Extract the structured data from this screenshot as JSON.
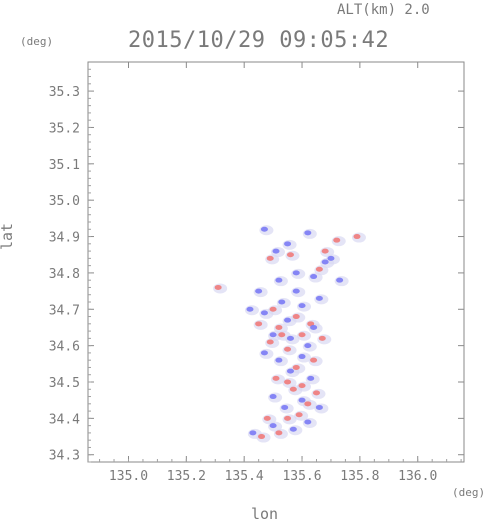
{
  "header": {
    "alt_label": "ALT(km) 2.0",
    "timestamp": "2015/10/29 09:05:42"
  },
  "units": {
    "y_unit": "(deg)",
    "x_unit": "(deg)"
  },
  "chart_data": {
    "type": "heatmap",
    "title": "2015/10/29 09:05:42",
    "subtitle": "ALT(km) 2.0",
    "xlabel": "lon",
    "ylabel": "lat",
    "xlim": [
      134.86,
      136.16
    ],
    "ylim": [
      34.28,
      35.38
    ],
    "xticks": [
      135.0,
      135.2,
      135.4,
      135.6,
      135.8,
      136.0
    ],
    "yticks": [
      34.3,
      34.4,
      34.5,
      34.6,
      34.7,
      34.8,
      34.9,
      35.0,
      35.1,
      35.2,
      35.3
    ],
    "xtick_labels": [
      "135.0",
      "135.2",
      "135.4",
      "135.6",
      "135.8",
      "136.0"
    ],
    "ytick_labels": [
      "34.3",
      "34.4",
      "34.5",
      "34.6",
      "34.7",
      "34.8",
      "34.9",
      "35.0",
      "35.1",
      "35.2",
      "35.3"
    ],
    "grid": false,
    "colors": {
      "positive": "#f07a7a",
      "negative": "#7a7af5",
      "neutral": "#d8d8f2"
    },
    "series": [
      {
        "kind": "positive",
        "points": [
          [
            135.46,
            34.35
          ],
          [
            135.52,
            34.36
          ],
          [
            135.48,
            34.4
          ],
          [
            135.55,
            34.4
          ],
          [
            135.59,
            34.41
          ],
          [
            135.62,
            34.44
          ],
          [
            135.65,
            34.47
          ],
          [
            135.6,
            34.49
          ],
          [
            135.55,
            34.5
          ],
          [
            135.51,
            34.51
          ],
          [
            135.58,
            34.54
          ],
          [
            135.64,
            34.56
          ],
          [
            135.55,
            34.59
          ],
          [
            135.49,
            34.61
          ],
          [
            135.6,
            34.63
          ],
          [
            135.52,
            34.65
          ],
          [
            135.45,
            34.66
          ],
          [
            135.58,
            34.68
          ],
          [
            135.5,
            34.7
          ],
          [
            135.63,
            34.66
          ],
          [
            135.67,
            34.62
          ],
          [
            135.49,
            34.84
          ],
          [
            135.56,
            34.85
          ],
          [
            135.68,
            34.86
          ],
          [
            135.72,
            34.89
          ],
          [
            135.79,
            34.9
          ],
          [
            135.31,
            34.76
          ],
          [
            135.66,
            34.81
          ],
          [
            135.53,
            34.63
          ],
          [
            135.57,
            34.48
          ]
        ]
      },
      {
        "kind": "negative",
        "points": [
          [
            135.43,
            34.36
          ],
          [
            135.5,
            34.38
          ],
          [
            135.57,
            34.37
          ],
          [
            135.62,
            34.39
          ],
          [
            135.54,
            34.43
          ],
          [
            135.6,
            34.45
          ],
          [
            135.66,
            34.43
          ],
          [
            135.5,
            34.46
          ],
          [
            135.63,
            34.51
          ],
          [
            135.56,
            34.53
          ],
          [
            135.6,
            34.57
          ],
          [
            135.52,
            34.56
          ],
          [
            135.47,
            34.58
          ],
          [
            135.62,
            34.6
          ],
          [
            135.56,
            34.62
          ],
          [
            135.5,
            34.63
          ],
          [
            135.64,
            34.65
          ],
          [
            135.55,
            34.67
          ],
          [
            135.47,
            34.69
          ],
          [
            135.6,
            34.71
          ],
          [
            135.53,
            34.72
          ],
          [
            135.42,
            34.7
          ],
          [
            135.52,
            34.78
          ],
          [
            135.58,
            34.8
          ],
          [
            135.64,
            34.79
          ],
          [
            135.68,
            34.83
          ],
          [
            135.73,
            34.78
          ],
          [
            135.55,
            34.88
          ],
          [
            135.62,
            34.91
          ],
          [
            135.47,
            34.92
          ],
          [
            135.51,
            34.86
          ],
          [
            135.7,
            34.84
          ],
          [
            135.58,
            34.75
          ],
          [
            135.66,
            34.73
          ],
          [
            135.45,
            34.75
          ]
        ]
      }
    ]
  }
}
